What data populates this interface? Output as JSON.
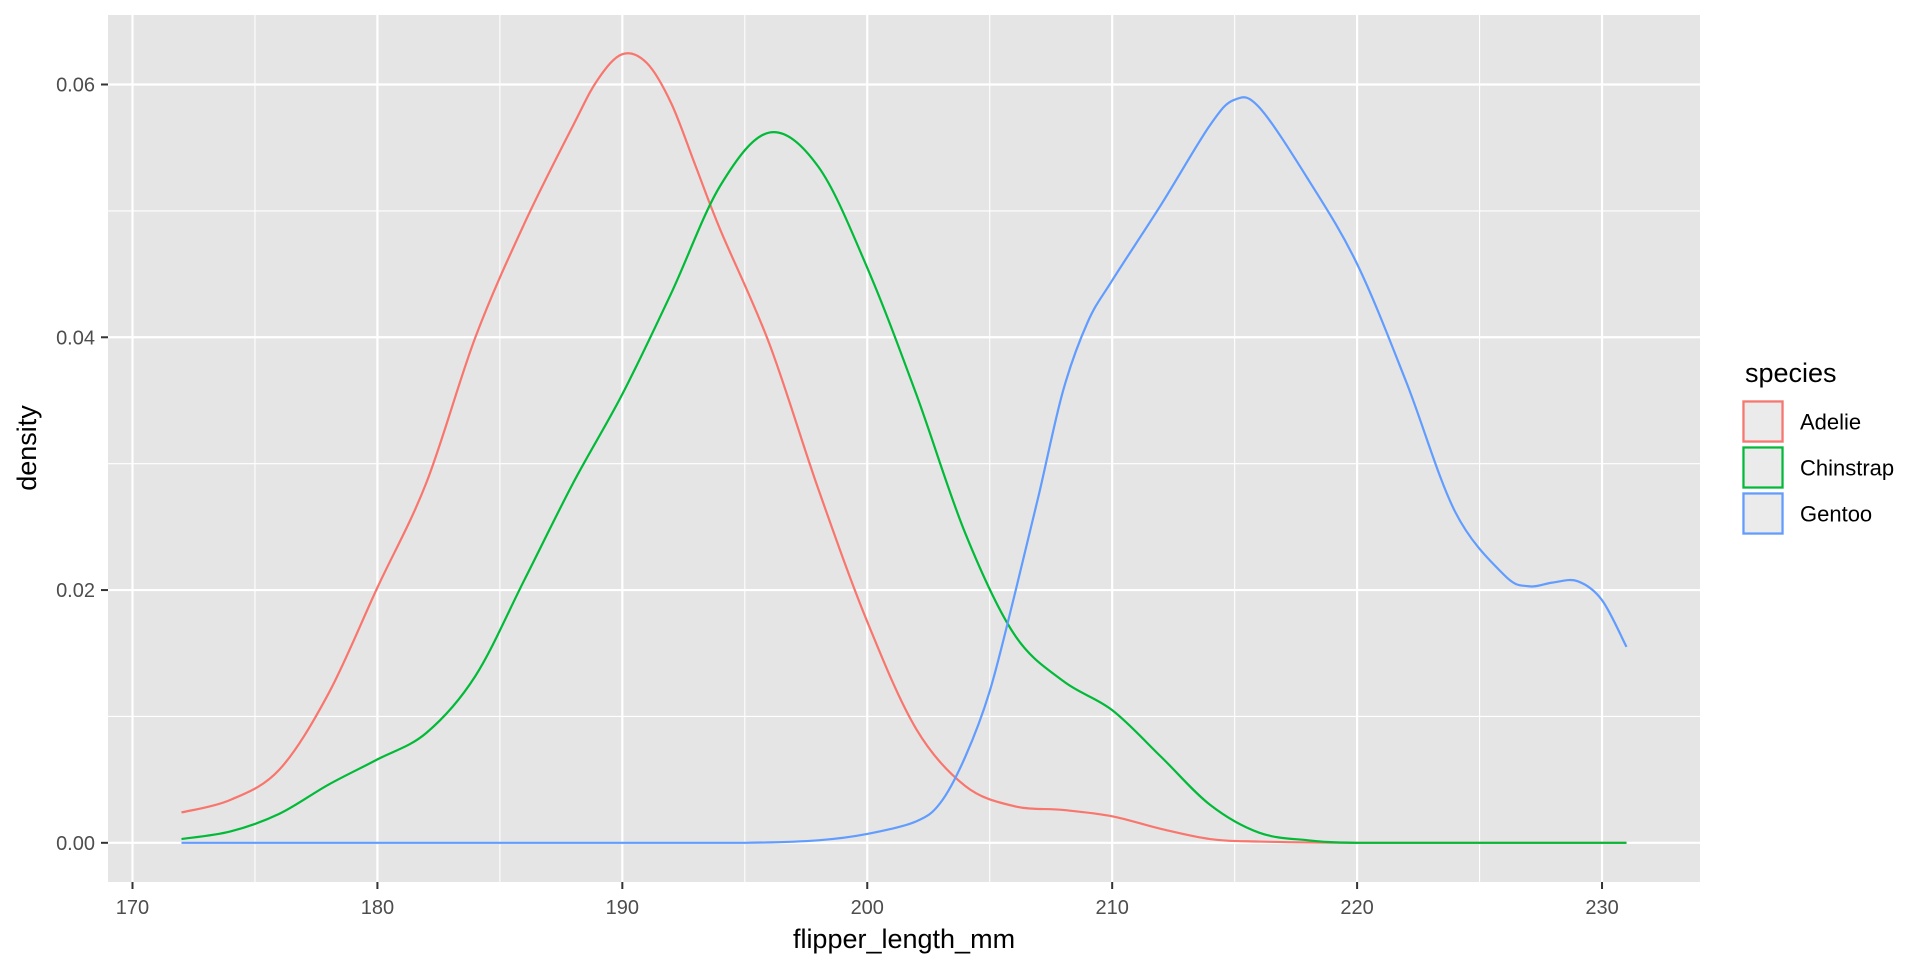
{
  "chart_data": {
    "type": "line",
    "title": "",
    "xlabel": "flipper_length_mm",
    "ylabel": "density",
    "xlim": [
      169,
      234
    ],
    "ylim": [
      -0.0031,
      0.0655
    ],
    "x_ticks": [
      170,
      180,
      190,
      200,
      210,
      220,
      230
    ],
    "x_tick_labels": [
      "170",
      "180",
      "190",
      "200",
      "210",
      "220",
      "230"
    ],
    "x_minor_ticks": [
      175,
      185,
      195,
      205,
      215,
      225
    ],
    "y_ticks": [
      0.0,
      0.02,
      0.04,
      0.06
    ],
    "y_tick_labels": [
      "0.00",
      "0.02",
      "0.04",
      "0.06"
    ],
    "y_minor_ticks": [
      0.01,
      0.03,
      0.05
    ],
    "grid": true,
    "panel_background": "#e5e5e5",
    "grid_color": "#ffffff",
    "legend": {
      "title": "species",
      "position": "right"
    },
    "series": [
      {
        "name": "Adelie",
        "color": "#F8766D",
        "x": [
          172,
          174,
          176,
          178,
          180,
          182,
          184,
          186,
          188,
          189,
          190,
          191,
          192,
          193,
          194,
          196,
          198,
          200,
          202,
          204,
          206,
          208,
          210,
          212,
          214,
          216,
          220,
          225,
          231
        ],
        "y": [
          0.0024,
          0.0034,
          0.0058,
          0.0118,
          0.0202,
          0.0285,
          0.04,
          0.049,
          0.0568,
          0.0604,
          0.0624,
          0.0617,
          0.0585,
          0.0535,
          0.0485,
          0.0395,
          0.028,
          0.0175,
          0.009,
          0.0045,
          0.0029,
          0.0026,
          0.0021,
          0.0011,
          0.0003,
          0.0001,
          0.0,
          0.0,
          0.0
        ]
      },
      {
        "name": "Chinstrap",
        "color": "#00BA38",
        "x": [
          172,
          174,
          176,
          178,
          180,
          182,
          184,
          186,
          188,
          190,
          192,
          194,
          196,
          198,
          200,
          202,
          204,
          206,
          208,
          210,
          212,
          214,
          216,
          218,
          220,
          225,
          231
        ],
        "y": [
          0.0003,
          0.0009,
          0.0023,
          0.0046,
          0.0066,
          0.0087,
          0.0132,
          0.0208,
          0.0285,
          0.0355,
          0.0435,
          0.052,
          0.0562,
          0.0535,
          0.0455,
          0.0355,
          0.0245,
          0.0165,
          0.0128,
          0.0105,
          0.0068,
          0.003,
          0.0008,
          0.0002,
          0.0,
          0.0,
          0.0
        ]
      },
      {
        "name": "Gentoo",
        "color": "#619CFF",
        "x": [
          172,
          180,
          190,
          195,
          198,
          200,
          202,
          203,
          204,
          205,
          206,
          207,
          208,
          209,
          210,
          212,
          214,
          215,
          216,
          218,
          220,
          222,
          224,
          226,
          227,
          228,
          229,
          230,
          231
        ],
        "y": [
          0.0,
          0.0,
          0.0,
          0.0,
          0.0002,
          0.0007,
          0.0017,
          0.0032,
          0.0068,
          0.012,
          0.0195,
          0.0275,
          0.0358,
          0.0412,
          0.0445,
          0.0505,
          0.0568,
          0.0588,
          0.0582,
          0.0525,
          0.0458,
          0.0365,
          0.0262,
          0.0212,
          0.0203,
          0.0206,
          0.0207,
          0.0192,
          0.0155
        ]
      }
    ]
  }
}
